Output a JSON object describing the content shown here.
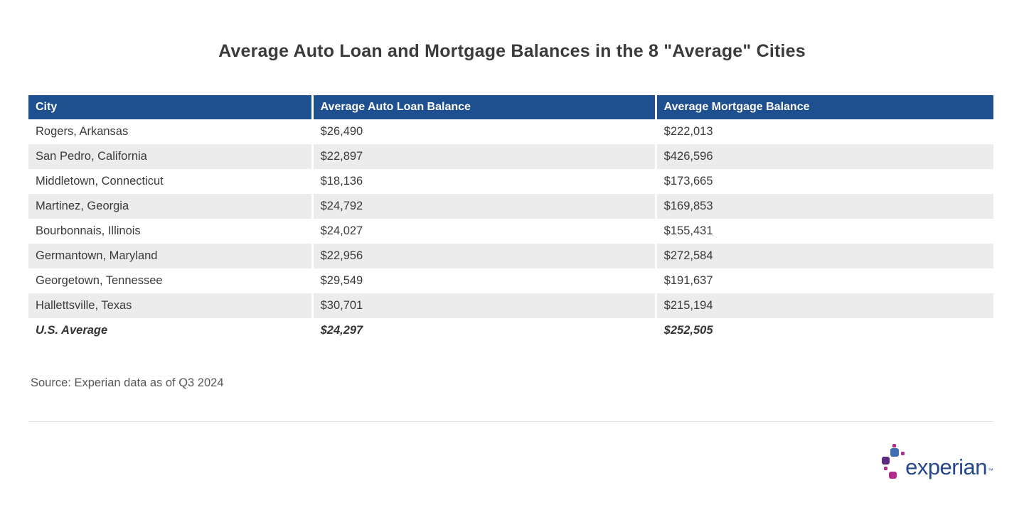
{
  "title": "Average Auto Loan and Mortgage Balances in the 8 \"Average\" Cities",
  "table": {
    "columns": [
      "City",
      "Average Auto Loan Balance",
      "Average Mortgage Balance"
    ],
    "rows": [
      {
        "city": "Rogers, Arkansas",
        "auto_loan": "$26,490",
        "mortgage": "$222,013",
        "emphasis": false
      },
      {
        "city": "San Pedro, California",
        "auto_loan": "$22,897",
        "mortgage": "$426,596",
        "emphasis": false
      },
      {
        "city": "Middletown, Connecticut",
        "auto_loan": "$18,136",
        "mortgage": "$173,665",
        "emphasis": false
      },
      {
        "city": "Martinez, Georgia",
        "auto_loan": "$24,792",
        "mortgage": "$169,853",
        "emphasis": false
      },
      {
        "city": "Bourbonnais, Illinois",
        "auto_loan": "$24,027",
        "mortgage": "$155,431",
        "emphasis": false
      },
      {
        "city": "Germantown, Maryland",
        "auto_loan": "$22,956",
        "mortgage": "$272,584",
        "emphasis": false
      },
      {
        "city": "Georgetown, Tennessee",
        "auto_loan": "$29,549",
        "mortgage": "$191,637",
        "emphasis": false
      },
      {
        "city": "Hallettsville, Texas",
        "auto_loan": "$30,701",
        "mortgage": "$215,194",
        "emphasis": false
      },
      {
        "city": "U.S. Average",
        "auto_loan": "$24,297",
        "mortgage": "$252,505",
        "emphasis": true
      }
    ]
  },
  "source": "Source: Experian data as of Q3 2024",
  "logo": {
    "text": "experian",
    "tm": "™"
  },
  "colors": {
    "header_bg": "#1d4f91",
    "stripe": "#ececec",
    "title_text": "#3b3b3b",
    "body_text": "#3a3a3a",
    "source_text": "#575757",
    "logo_blue": "#3f6eb3",
    "logo_purple": "#5b2a82",
    "logo_magenta": "#b12a8c",
    "logo_text_blue": "#26478d"
  },
  "chart_data": {
    "type": "table",
    "title": "Average Auto Loan and Mortgage Balances in the 8 \"Average\" Cities",
    "columns": [
      "City",
      "Average Auto Loan Balance",
      "Average Mortgage Balance"
    ],
    "rows": [
      [
        "Rogers, Arkansas",
        26490,
        222013
      ],
      [
        "San Pedro, California",
        22897,
        426596
      ],
      [
        "Middletown, Connecticut",
        18136,
        173665
      ],
      [
        "Martinez, Georgia",
        24792,
        169853
      ],
      [
        "Bourbonnais, Illinois",
        24027,
        155431
      ],
      [
        "Germantown, Maryland",
        22956,
        272584
      ],
      [
        "Georgetown, Tennessee",
        29549,
        191637
      ],
      [
        "Hallettsville, Texas",
        30701,
        215194
      ],
      [
        "U.S. Average",
        24297,
        252505
      ]
    ],
    "source_note": "Source: Experian data as of Q3 2024"
  }
}
